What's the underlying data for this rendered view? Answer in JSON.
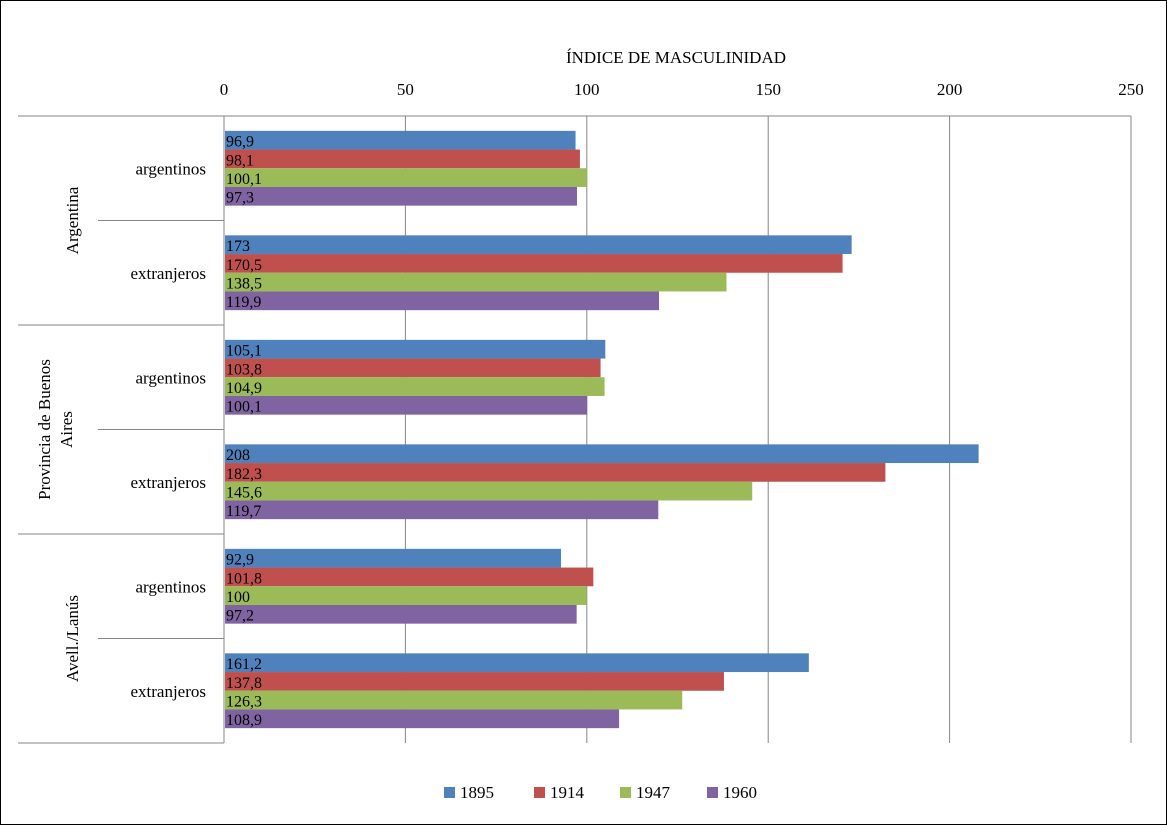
{
  "chart_data": {
    "type": "bar",
    "orientation": "horizontal",
    "title": "",
    "xlabel": "ÍNDICE DE MASCULINIDAD",
    "xlim": [
      0,
      250
    ],
    "xticks": [
      0,
      50,
      100,
      150,
      200,
      250
    ],
    "axis_position": "top",
    "grid": true,
    "legend_placement": "bottom",
    "groups": [
      {
        "label": "Argentina",
        "categories": [
          "argentinos",
          "extranjeros"
        ]
      },
      {
        "label": "Provincia de Buenos Aires",
        "categories": [
          "argentinos",
          "extranjeros"
        ]
      },
      {
        "label": "Avell./Lanús",
        "categories": [
          "argentinos",
          "extranjeros"
        ]
      }
    ],
    "series": [
      {
        "name": "1895",
        "color": "#4F81BD",
        "values": [
          96.9,
          173,
          105.1,
          208,
          92.9,
          161.2
        ],
        "labels": [
          "96,9",
          "173",
          "105,1",
          "208",
          "92,9",
          "161,2"
        ]
      },
      {
        "name": "1914",
        "color": "#C0504D",
        "values": [
          98.1,
          170.5,
          103.8,
          182.3,
          101.8,
          137.8
        ],
        "labels": [
          "98,1",
          "170,5",
          "103,8",
          "182,3",
          "101,8",
          "137,8"
        ]
      },
      {
        "name": "1947",
        "color": "#9BBB59",
        "values": [
          100.1,
          138.5,
          104.9,
          145.6,
          100,
          126.3
        ],
        "labels": [
          "100,1",
          "138,5",
          "104,9",
          "145,6",
          "100",
          "126,3"
        ]
      },
      {
        "name": "1960",
        "color": "#8064A2",
        "values": [
          97.3,
          119.9,
          100.1,
          119.7,
          97.2,
          108.9
        ],
        "labels": [
          "97,3",
          "119,9",
          "100,1",
          "119,7",
          "97,2",
          "108,9"
        ]
      }
    ]
  }
}
